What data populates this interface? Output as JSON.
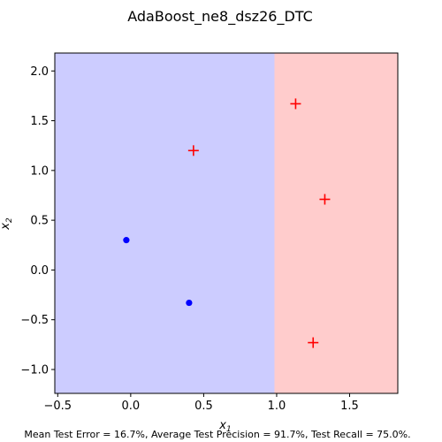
{
  "chart_data": {
    "type": "scatter",
    "title": "AdaBoost_ne8_dsz26_DTC",
    "xlabel": "x",
    "xlabel_sub": "1",
    "ylabel": "x",
    "ylabel_sub": "2",
    "xlim": [
      -0.52,
      1.83
    ],
    "ylim": [
      -1.24,
      2.18
    ],
    "x_ticks": [
      -0.5,
      0.0,
      0.5,
      1.0,
      1.5
    ],
    "x_tick_labels": [
      "−0.5",
      "0.0",
      "0.5",
      "1.0",
      "1.5"
    ],
    "y_ticks": [
      -1.0,
      -0.5,
      0.0,
      0.5,
      1.0,
      1.5,
      2.0
    ],
    "y_tick_labels": [
      "−1.0",
      "−0.5",
      "0.0",
      "0.5",
      "1.0",
      "1.5",
      "2.0"
    ],
    "grid": false,
    "decision_regions": [
      {
        "class": "negative",
        "x_from": -0.52,
        "x_to": 0.985,
        "color": "#ccccff"
      },
      {
        "class": "positive",
        "x_from": 0.985,
        "x_to": 1.83,
        "color": "#ffcccc"
      }
    ],
    "series": [
      {
        "marker": "dot",
        "color": "#0000ff",
        "points": [
          {
            "x": -0.03,
            "y": 0.3
          },
          {
            "x": 0.4,
            "y": -0.33
          }
        ]
      },
      {
        "marker": "plus",
        "color": "#ff0000",
        "points": [
          {
            "x": 0.43,
            "y": 1.2
          },
          {
            "x": 1.13,
            "y": 1.67
          },
          {
            "x": 1.33,
            "y": 0.71
          },
          {
            "x": 1.25,
            "y": -0.73
          }
        ]
      }
    ],
    "footer": "Mean Test Error = 16.7%, Average Test Precision = 91.7%, Test Recall = 75.0%."
  }
}
